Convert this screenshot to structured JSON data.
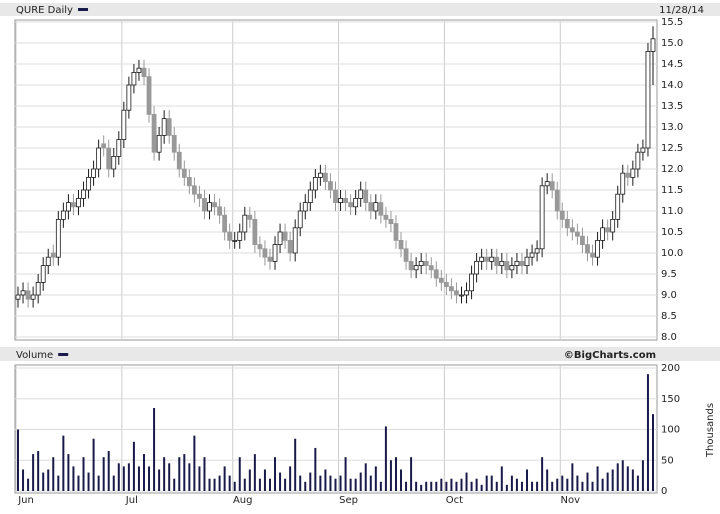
{
  "chart_data": [
    {
      "type": "candlestick",
      "title": "QURE Daily",
      "date": "11/28/14",
      "legend_color": "#1a1a4a",
      "color_up": "#ffffff",
      "color_down": "#999999",
      "edge_up": "#1a1a1a",
      "edge_down": "#999999",
      "grid": true,
      "ylim": [
        8.0,
        15.5
      ],
      "yticks": [
        {
          "value": 8,
          "label": "8.0"
        },
        8.5,
        {
          "value": 9,
          "label": "9.0"
        },
        9.5,
        {
          "value": 10,
          "label": "10.0"
        },
        10.5,
        {
          "value": 11,
          "label": "11.0"
        },
        11.5,
        {
          "value": 12,
          "label": "12.0"
        },
        12.5,
        {
          "value": 13,
          "label": "13.0"
        },
        13.5,
        {
          "value": 14,
          "label": "14.0"
        },
        14.5,
        {
          "value": 15,
          "label": "15.0"
        },
        15.5
      ],
      "open": [
        8.9,
        9.0,
        9.1,
        8.9,
        9.0,
        9.3,
        9.7,
        10.0,
        9.9,
        10.8,
        11.0,
        11.2,
        11.1,
        11.3,
        11.5,
        11.8,
        12.0,
        12.6,
        12.5,
        12.0,
        12.3,
        12.7,
        13.4,
        14.0,
        14.3,
        14.4,
        14.2,
        13.3,
        12.4,
        12.8,
        13.2,
        12.8,
        12.4,
        12.0,
        11.8,
        11.6,
        11.4,
        11.3,
        11.0,
        11.2,
        11.1,
        10.9,
        10.5,
        10.3,
        10.3,
        10.5,
        10.9,
        10.8,
        10.2,
        10.1,
        9.9,
        9.8,
        10.2,
        10.5,
        10.3,
        10.0,
        10.6,
        11.0,
        11.2,
        11.5,
        11.8,
        11.9,
        11.7,
        11.5,
        11.2,
        11.3,
        11.2,
        11.1,
        11.3,
        11.5,
        11.2,
        11.0,
        11.2,
        10.9,
        10.8,
        10.7,
        10.3,
        10.1,
        9.8,
        9.6,
        9.7,
        9.8,
        9.7,
        9.6,
        9.4,
        9.3,
        9.2,
        9.1,
        9.0,
        9.0,
        9.1,
        9.5,
        9.8,
        9.9,
        9.8,
        9.9,
        9.7,
        9.8,
        9.6,
        9.7,
        9.8,
        9.7,
        9.9,
        10.0,
        10.1,
        11.6,
        11.7,
        11.5,
        11.0,
        10.8,
        10.6,
        10.5,
        10.4,
        10.2,
        10.0,
        9.9,
        10.3,
        10.6,
        10.5,
        10.8,
        11.4,
        11.9,
        11.8,
        12.0,
        12.4,
        12.5,
        14.8
      ],
      "high": [
        9.2,
        9.3,
        9.3,
        9.2,
        9.5,
        9.9,
        10.1,
        10.2,
        11.0,
        11.2,
        11.4,
        11.4,
        11.5,
        11.7,
        12.0,
        12.2,
        12.7,
        12.8,
        12.7,
        12.5,
        12.9,
        13.6,
        14.2,
        14.5,
        14.6,
        14.6,
        14.4,
        13.5,
        13.0,
        13.4,
        13.4,
        13.0,
        12.6,
        12.2,
        12.0,
        11.8,
        11.6,
        11.5,
        11.4,
        11.4,
        11.3,
        11.1,
        10.7,
        10.5,
        10.7,
        11.1,
        11.1,
        11.0,
        10.4,
        10.3,
        10.1,
        10.4,
        10.7,
        10.7,
        10.5,
        10.8,
        11.2,
        11.4,
        11.7,
        12.0,
        12.1,
        12.1,
        11.9,
        11.7,
        11.5,
        11.5,
        11.4,
        11.5,
        11.7,
        11.7,
        11.4,
        11.4,
        11.4,
        11.1,
        11.0,
        10.9,
        10.5,
        10.3,
        10.0,
        9.9,
        10.0,
        10.0,
        9.9,
        9.8,
        9.6,
        9.5,
        9.4,
        9.3,
        9.2,
        9.3,
        9.7,
        10.0,
        10.1,
        10.1,
        10.1,
        10.1,
        10.0,
        10.0,
        9.9,
        10.0,
        10.0,
        10.1,
        10.2,
        10.3,
        11.8,
        11.9,
        11.9,
        11.7,
        11.2,
        11.0,
        10.8,
        10.7,
        10.6,
        10.4,
        10.2,
        10.5,
        10.8,
        10.8,
        11.0,
        11.6,
        12.1,
        12.1,
        12.2,
        12.6,
        12.7,
        15.0,
        15.4
      ],
      "low": [
        8.7,
        8.8,
        8.7,
        8.7,
        8.8,
        9.1,
        9.5,
        9.7,
        9.7,
        10.6,
        10.8,
        10.9,
        10.9,
        11.1,
        11.3,
        11.6,
        11.8,
        12.3,
        11.8,
        11.8,
        12.1,
        12.5,
        13.2,
        13.8,
        14.1,
        14.0,
        13.1,
        12.2,
        12.2,
        12.6,
        12.6,
        12.2,
        11.8,
        11.6,
        11.4,
        11.2,
        11.1,
        10.8,
        10.8,
        10.9,
        10.7,
        10.3,
        10.1,
        10.1,
        10.1,
        10.3,
        10.6,
        10.0,
        9.9,
        9.7,
        9.6,
        9.6,
        10.0,
        10.1,
        9.8,
        9.8,
        10.4,
        10.8,
        11.0,
        11.3,
        11.6,
        11.5,
        11.3,
        11.0,
        11.0,
        11.0,
        10.9,
        10.9,
        11.1,
        11.0,
        10.8,
        10.8,
        10.7,
        10.6,
        10.5,
        10.1,
        9.9,
        9.6,
        9.4,
        9.4,
        9.5,
        9.5,
        9.4,
        9.2,
        9.1,
        9.0,
        8.9,
        8.8,
        8.8,
        8.8,
        8.9,
        9.3,
        9.6,
        9.6,
        9.6,
        9.5,
        9.5,
        9.4,
        9.4,
        9.5,
        9.5,
        9.5,
        9.7,
        9.8,
        9.9,
        11.4,
        11.3,
        10.8,
        10.6,
        10.4,
        10.3,
        10.2,
        10.0,
        9.8,
        9.7,
        9.7,
        10.1,
        10.3,
        10.3,
        10.6,
        11.2,
        11.6,
        11.6,
        11.8,
        12.2,
        12.3,
        14.0
      ],
      "close": [
        9.0,
        9.1,
        8.9,
        9.0,
        9.3,
        9.7,
        9.9,
        9.9,
        10.8,
        11.0,
        11.2,
        11.1,
        11.3,
        11.5,
        11.8,
        12.0,
        12.5,
        12.5,
        12.0,
        12.3,
        12.7,
        13.4,
        14.0,
        14.3,
        14.4,
        14.2,
        13.3,
        12.4,
        12.8,
        13.2,
        12.8,
        12.4,
        12.0,
        11.8,
        11.6,
        11.4,
        11.3,
        11.0,
        11.2,
        11.1,
        10.9,
        10.5,
        10.3,
        10.3,
        10.5,
        10.9,
        10.8,
        10.2,
        10.1,
        9.9,
        9.8,
        10.2,
        10.5,
        10.3,
        10.0,
        10.6,
        11.0,
        11.2,
        11.5,
        11.8,
        11.9,
        11.7,
        11.5,
        11.2,
        11.3,
        11.2,
        11.1,
        11.3,
        11.5,
        11.2,
        11.0,
        11.2,
        10.9,
        10.8,
        10.7,
        10.3,
        10.1,
        9.8,
        9.6,
        9.7,
        9.8,
        9.7,
        9.6,
        9.4,
        9.3,
        9.2,
        9.1,
        9.0,
        9.0,
        9.1,
        9.5,
        9.8,
        9.9,
        9.8,
        9.9,
        9.7,
        9.8,
        9.6,
        9.7,
        9.8,
        9.7,
        9.9,
        10.0,
        10.1,
        11.6,
        11.7,
        11.5,
        11.0,
        10.8,
        10.6,
        10.5,
        10.4,
        10.2,
        10.0,
        9.9,
        10.3,
        10.6,
        10.5,
        10.8,
        11.4,
        11.9,
        11.8,
        12.0,
        12.4,
        12.5,
        14.8,
        15.1
      ]
    },
    {
      "type": "bar",
      "title": "Volume",
      "credit": "©BigCharts.com",
      "y_label": "Thousands",
      "color": "#1a1a4a",
      "grid": true,
      "ylim": [
        0,
        200
      ],
      "yticks": [
        0,
        50,
        100,
        150,
        200
      ],
      "categories": [
        "Jun",
        null,
        null,
        null,
        null,
        null,
        null,
        null,
        null,
        null,
        null,
        null,
        null,
        null,
        null,
        null,
        null,
        null,
        null,
        null,
        null,
        "Jul",
        null,
        null,
        null,
        null,
        null,
        null,
        null,
        null,
        null,
        null,
        null,
        null,
        null,
        null,
        null,
        null,
        null,
        null,
        null,
        null,
        null,
        "Aug",
        null,
        null,
        null,
        null,
        null,
        null,
        null,
        null,
        null,
        null,
        null,
        null,
        null,
        null,
        null,
        null,
        null,
        null,
        null,
        null,
        "Sep",
        null,
        null,
        null,
        null,
        null,
        null,
        null,
        null,
        null,
        null,
        null,
        null,
        null,
        null,
        null,
        null,
        null,
        null,
        null,
        null,
        "Oct",
        null,
        null,
        null,
        null,
        null,
        null,
        null,
        null,
        null,
        null,
        null,
        null,
        null,
        null,
        null,
        null,
        null,
        null,
        null,
        null,
        null,
        null,
        "Nov",
        null,
        null,
        null,
        null,
        null,
        null,
        null,
        null,
        null,
        null,
        null,
        null,
        null,
        null,
        null,
        null,
        null,
        null
      ],
      "values": [
        100,
        35,
        20,
        60,
        65,
        30,
        35,
        55,
        25,
        90,
        60,
        40,
        25,
        55,
        30,
        85,
        25,
        55,
        65,
        25,
        45,
        40,
        45,
        80,
        40,
        60,
        40,
        135,
        35,
        55,
        45,
        20,
        55,
        60,
        45,
        90,
        40,
        55,
        20,
        20,
        25,
        40,
        25,
        15,
        55,
        20,
        35,
        60,
        20,
        35,
        20,
        55,
        30,
        20,
        40,
        85,
        25,
        15,
        30,
        70,
        25,
        35,
        25,
        20,
        25,
        55,
        20,
        20,
        30,
        45,
        25,
        40,
        15,
        105,
        50,
        55,
        35,
        15,
        55,
        15,
        10,
        15,
        15,
        15,
        20,
        15,
        20,
        15,
        20,
        30,
        15,
        20,
        10,
        25,
        25,
        15,
        40,
        10,
        25,
        20,
        15,
        35,
        15,
        15,
        55,
        35,
        15,
        20,
        25,
        20,
        45,
        25,
        15,
        30,
        15,
        40,
        20,
        30,
        35,
        45,
        50,
        40,
        35,
        25,
        50,
        190,
        125
      ]
    }
  ]
}
